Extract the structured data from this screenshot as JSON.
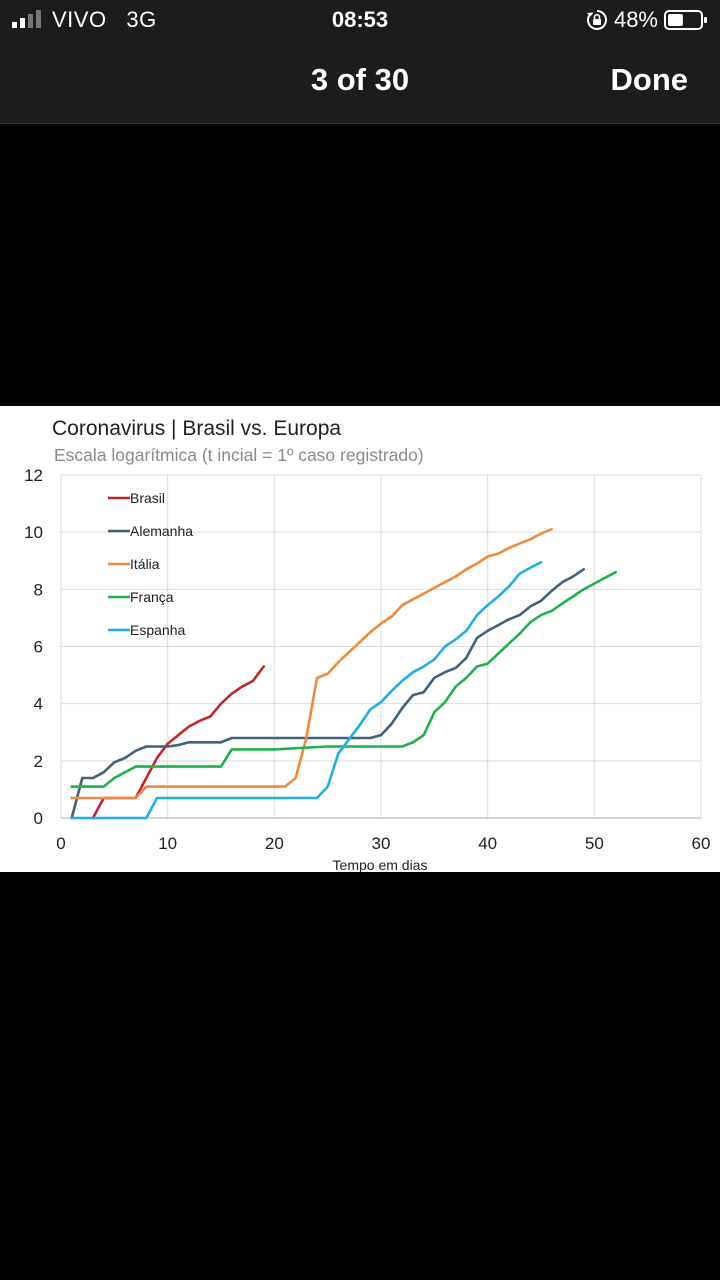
{
  "status_bar": {
    "carrier": "VIVO",
    "network": "3G",
    "time": "08:53",
    "battery": "48%",
    "battery_level": 0.48
  },
  "nav": {
    "counter": "3 of 30",
    "done_label": "Done"
  },
  "chart_data": {
    "type": "line",
    "title": "Coronavirus | Brasil vs. Europa",
    "subtitle": "Escala logarítmica (t incial = 1º caso registrado)",
    "xlabel": "Tempo em dias",
    "ylabel": "",
    "xlim": [
      0,
      60
    ],
    "ylim": [
      0,
      12
    ],
    "xticks": [
      0,
      10,
      20,
      30,
      40,
      50,
      60
    ],
    "yticks": [
      0,
      2,
      4,
      6,
      8,
      10,
      12
    ],
    "grid": true,
    "legend_position": "top-left",
    "series": [
      {
        "name": "Brasil",
        "color": "#c0262a",
        "x": [
          3,
          4,
          5,
          6,
          7,
          8,
          9,
          10,
          11,
          12,
          13,
          14,
          15,
          16,
          17,
          18,
          19
        ],
        "y": [
          0,
          0.7,
          0.7,
          0.7,
          0.7,
          1.4,
          2.1,
          2.6,
          2.9,
          3.2,
          3.4,
          3.55,
          4.0,
          4.35,
          4.6,
          4.8,
          5.3
        ]
      },
      {
        "name": "Alemanha",
        "color": "#41627a",
        "x": [
          1,
          2,
          3,
          4,
          5,
          6,
          7,
          8,
          9,
          10,
          11,
          12,
          13,
          14,
          15,
          16,
          17,
          20,
          25,
          29,
          30,
          31,
          32,
          33,
          34,
          35,
          36,
          37,
          38,
          39,
          40,
          41,
          42,
          43,
          44,
          45,
          46,
          47,
          48,
          49
        ],
        "y": [
          0,
          1.4,
          1.4,
          1.6,
          1.95,
          2.1,
          2.35,
          2.5,
          2.5,
          2.5,
          2.55,
          2.65,
          2.65,
          2.65,
          2.65,
          2.8,
          2.8,
          2.8,
          2.8,
          2.8,
          2.9,
          3.3,
          3.85,
          4.3,
          4.4,
          4.9,
          5.1,
          5.25,
          5.6,
          6.3,
          6.55,
          6.75,
          6.95,
          7.1,
          7.4,
          7.6,
          7.95,
          8.25,
          8.45,
          8.7
        ]
      },
      {
        "name": "Itália",
        "color": "#ee8a3c",
        "x": [
          1,
          7,
          8,
          12,
          20,
          21,
          22,
          23,
          24,
          25,
          26,
          27,
          28,
          29,
          30,
          31,
          32,
          33,
          34,
          35,
          36,
          37,
          38,
          39,
          40,
          41,
          42,
          43,
          44,
          45,
          46
        ],
        "y": [
          0.7,
          0.7,
          1.1,
          1.1,
          1.1,
          1.1,
          1.4,
          2.8,
          4.9,
          5.05,
          5.45,
          5.8,
          6.15,
          6.5,
          6.8,
          7.05,
          7.45,
          7.65,
          7.85,
          8.05,
          8.25,
          8.45,
          8.7,
          8.9,
          9.15,
          9.25,
          9.45,
          9.6,
          9.75,
          9.95,
          10.1
        ]
      },
      {
        "name": "França",
        "color": "#20b14c",
        "x": [
          1,
          2,
          3,
          4,
          5,
          6,
          7,
          10,
          15,
          16,
          20,
          25,
          30,
          31,
          32,
          33,
          34,
          35,
          36,
          37,
          38,
          39,
          40,
          41,
          42,
          43,
          44,
          45,
          46,
          47,
          48,
          49,
          50,
          51,
          52
        ],
        "y": [
          1.1,
          1.1,
          1.1,
          1.1,
          1.4,
          1.6,
          1.8,
          1.8,
          1.8,
          2.4,
          2.4,
          2.5,
          2.5,
          2.5,
          2.5,
          2.65,
          2.9,
          3.7,
          4.05,
          4.6,
          4.9,
          5.3,
          5.4,
          5.75,
          6.1,
          6.45,
          6.85,
          7.1,
          7.25,
          7.5,
          7.75,
          8.0,
          8.2,
          8.4,
          8.6
        ]
      },
      {
        "name": "Espanha",
        "color": "#21aee3",
        "x": [
          1,
          8,
          9,
          15,
          20,
          24,
          25,
          26,
          27,
          28,
          29,
          30,
          31,
          32,
          33,
          34,
          35,
          36,
          37,
          38,
          39,
          40,
          41,
          42,
          43,
          44,
          45
        ],
        "y": [
          0,
          0,
          0.7,
          0.7,
          0.7,
          0.7,
          1.1,
          2.25,
          2.75,
          3.25,
          3.8,
          4.05,
          4.45,
          4.8,
          5.1,
          5.3,
          5.55,
          6.0,
          6.25,
          6.55,
          7.1,
          7.45,
          7.75,
          8.1,
          8.55,
          8.75,
          8.95
        ]
      }
    ]
  }
}
